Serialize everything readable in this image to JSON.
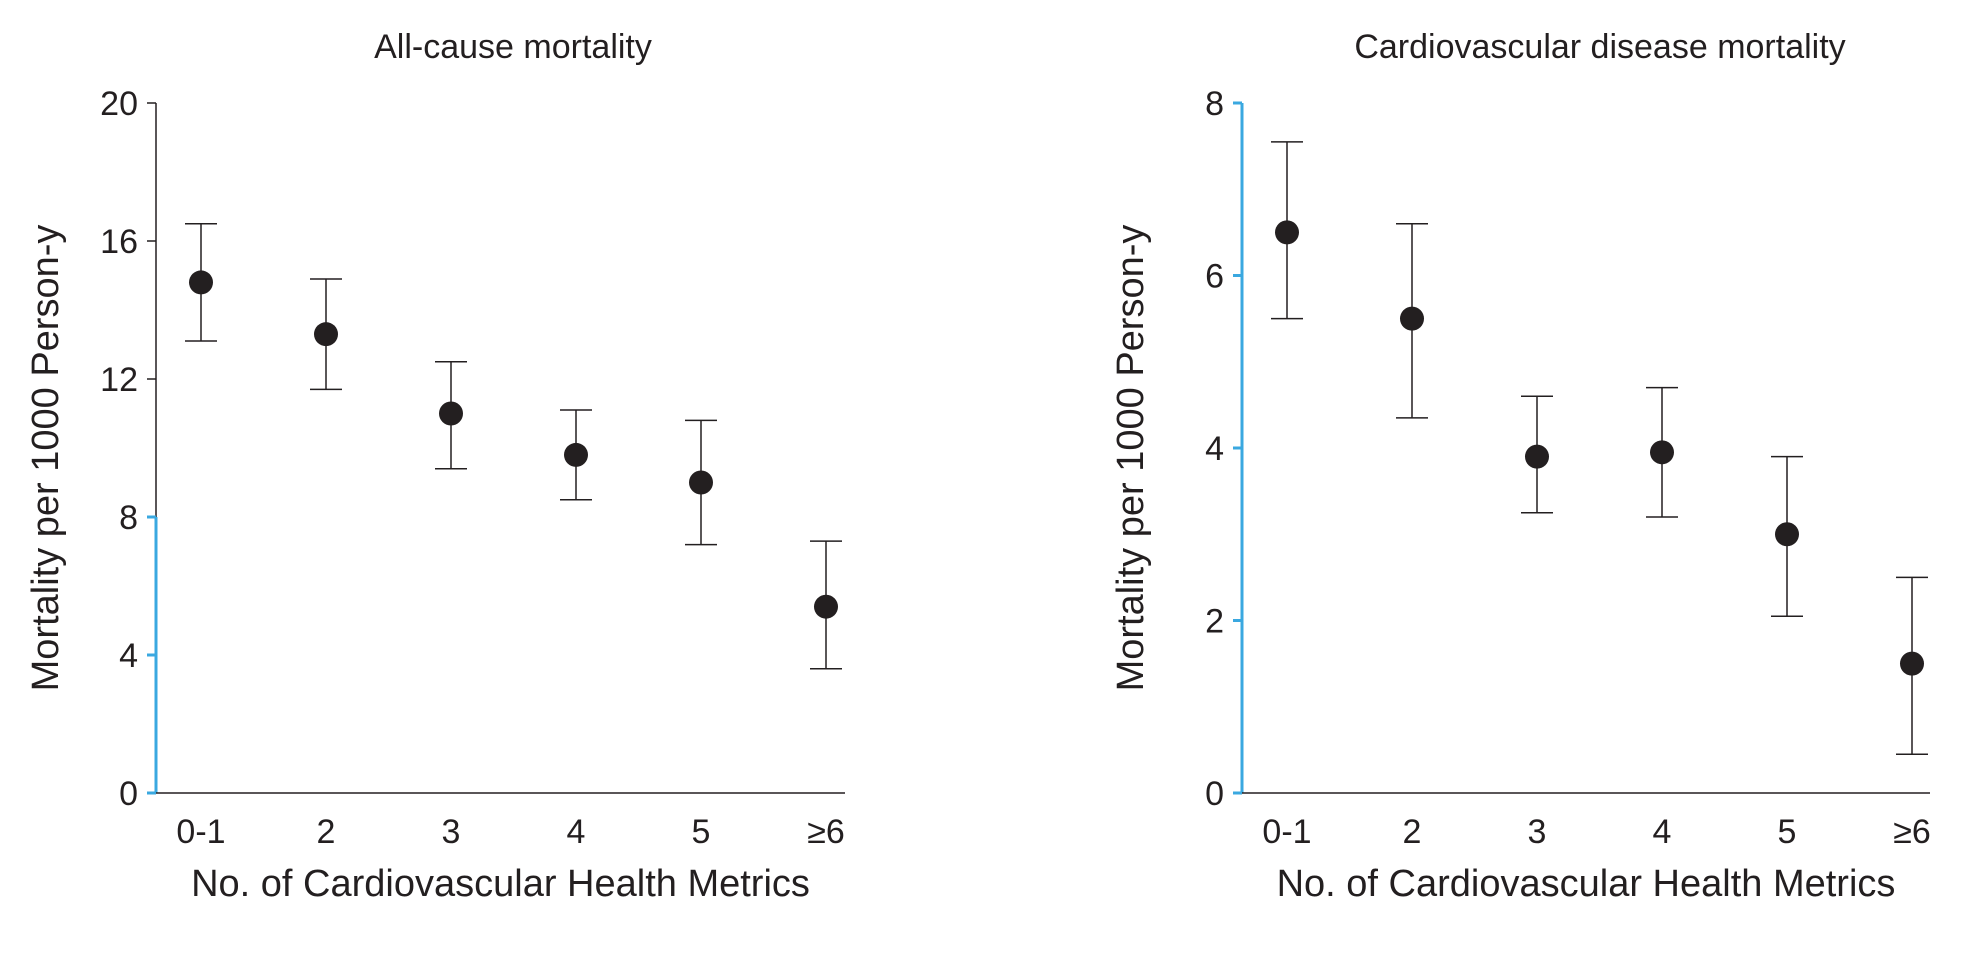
{
  "chart_data": [
    {
      "type": "scatter",
      "title": "All-cause mortality",
      "xlabel": "No. of Cardiovascular Health Metrics",
      "ylabel": "Mortality per 1000 Person-y",
      "categories": [
        "0-1",
        "2",
        "3",
        "4",
        "5",
        "≥6"
      ],
      "values": [
        14.8,
        13.3,
        11.0,
        9.8,
        9.0,
        5.4
      ],
      "error_low": [
        13.1,
        11.7,
        9.4,
        8.5,
        7.2,
        3.6
      ],
      "error_high": [
        16.5,
        14.9,
        12.5,
        11.1,
        10.8,
        7.3
      ],
      "ylim": [
        0,
        20
      ],
      "yticks": [
        0,
        4,
        8,
        12,
        16,
        20
      ],
      "grid": false,
      "colors": {
        "marker": "#231f20",
        "axis": "#231f20",
        "accent_axis": "#3aa8e0"
      }
    },
    {
      "type": "scatter",
      "title": "Cardiovascular disease mortality",
      "xlabel": "No. of Cardiovascular Health Metrics",
      "ylabel": "Mortality per 1000 Person-y",
      "categories": [
        "0-1",
        "2",
        "3",
        "4",
        "5",
        "≥6"
      ],
      "values": [
        6.5,
        5.5,
        3.9,
        3.95,
        3.0,
        1.5
      ],
      "error_low": [
        5.5,
        4.35,
        3.25,
        3.2,
        2.05,
        0.45
      ],
      "error_high": [
        7.55,
        6.6,
        4.6,
        4.7,
        3.9,
        2.5
      ],
      "ylim": [
        0,
        8
      ],
      "yticks": [
        0,
        2,
        4,
        6,
        8
      ],
      "grid": false,
      "colors": {
        "marker": "#231f20",
        "axis": "#231f20",
        "accent_axis": "#3aa8e0"
      }
    }
  ]
}
